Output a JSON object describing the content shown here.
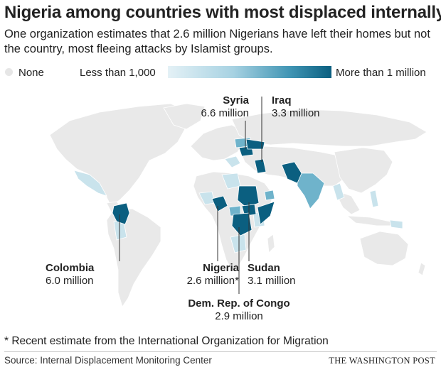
{
  "title": "Nigeria among countries with most displaced internally",
  "subtitle": "One organization estimates that 2.6 million Nigerians have left their homes but not the country, most fleeing attacks by Islamist groups.",
  "legend": {
    "none_label": "None",
    "low_label": "Less than 1,000",
    "high_label": "More than 1 million",
    "colors": {
      "none": "#e6e6e6",
      "low": "#e4f1f6",
      "mid": "#7fbfd4",
      "high": "#0b5f80"
    }
  },
  "callouts": [
    {
      "id": "syria",
      "name": "Syria",
      "value": "6.6 million"
    },
    {
      "id": "iraq",
      "name": "Iraq",
      "value": "3.3 million"
    },
    {
      "id": "colombia",
      "name": "Colombia",
      "value": "6.0 million"
    },
    {
      "id": "nigeria",
      "name": "Nigeria",
      "value": "2.6 million*"
    },
    {
      "id": "sudan",
      "name": "Sudan",
      "value": "3.1 million"
    },
    {
      "id": "drc",
      "name": "Dem. Rep. of Congo",
      "value": "2.9 million"
    }
  ],
  "footnote": "* Recent estimate from the International Organization for Migration",
  "source": "Source: Internal Displacement Monitoring Center",
  "brand": "THE WASHINGTON POST"
}
